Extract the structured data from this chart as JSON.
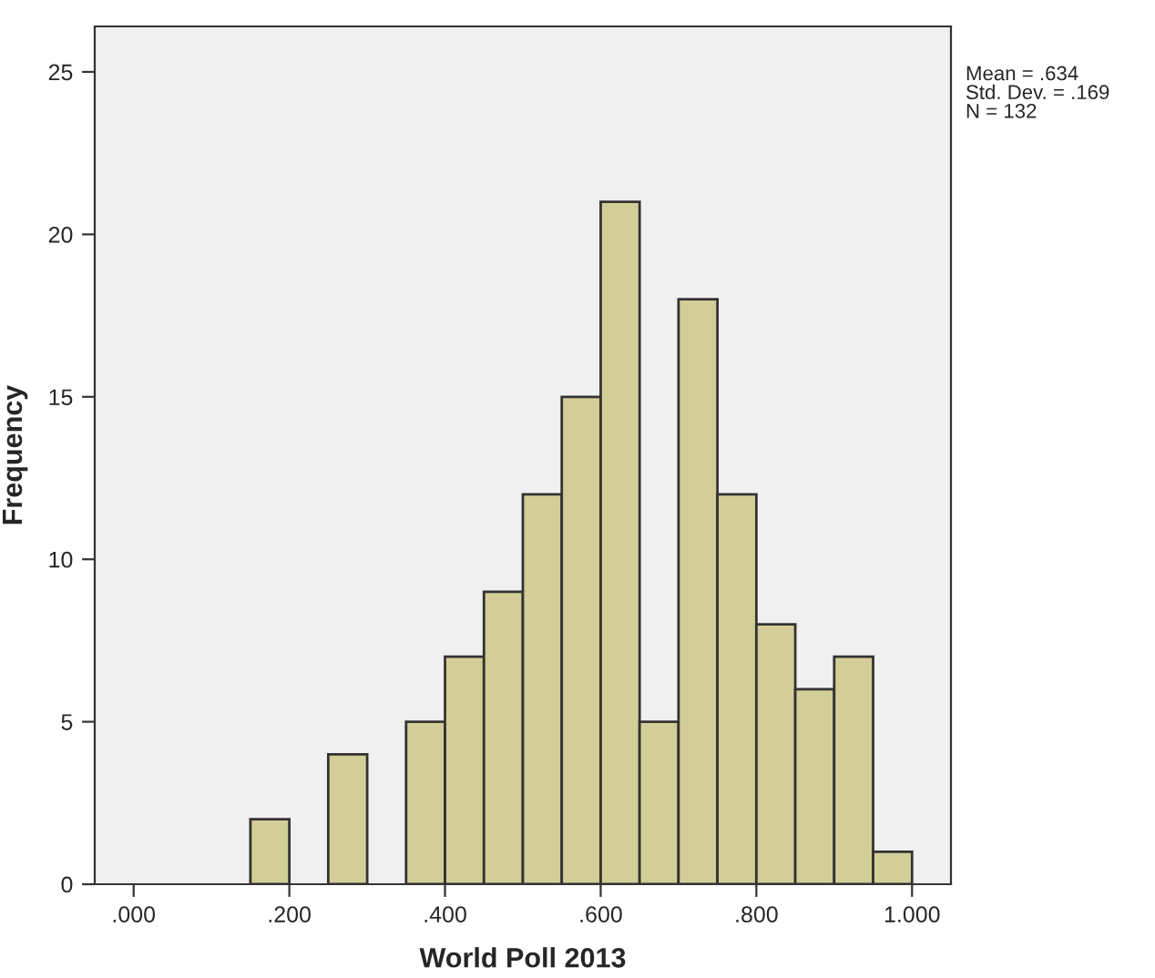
{
  "chart_data": {
    "type": "histogram",
    "xlabel": "World Poll 2013",
    "ylabel": "Frequency",
    "bins": [
      0.15,
      0.2,
      0.25,
      0.3,
      0.35,
      0.4,
      0.45,
      0.5,
      0.55,
      0.6,
      0.65,
      0.7,
      0.75,
      0.8,
      0.85,
      0.9,
      0.95,
      1.0
    ],
    "values": [
      2,
      0,
      4,
      0,
      5,
      7,
      9,
      12,
      15,
      21,
      5,
      18,
      12,
      8,
      6,
      7,
      1
    ],
    "color": "#d3ce97",
    "xlim": [
      -0.05,
      1.05
    ],
    "ylim": [
      0,
      26.4
    ],
    "xticks": [
      {
        "value": 0,
        "label": ".000"
      },
      {
        "value": 0.2,
        "label": ".200"
      },
      {
        "value": 0.4,
        "label": ".400"
      },
      {
        "value": 0.6,
        "label": ".600"
      },
      {
        "value": 0.8,
        "label": ".800"
      },
      {
        "value": 1.0,
        "label": "1.000"
      }
    ],
    "yticks": [
      0,
      5,
      10,
      15,
      20,
      25
    ],
    "grid": false,
    "annotations": [
      "Mean = .634\nStd. Dev. = .169\nN = 132"
    ]
  }
}
